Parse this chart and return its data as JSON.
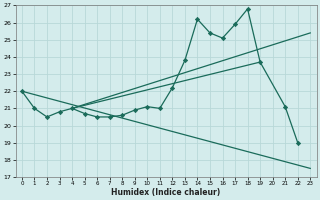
{
  "xlabel": "Humidex (Indice chaleur)",
  "xlim": [
    -0.5,
    23.5
  ],
  "ylim": [
    17,
    27
  ],
  "yticks": [
    17,
    18,
    19,
    20,
    21,
    22,
    23,
    24,
    25,
    26,
    27
  ],
  "xticks": [
    0,
    1,
    2,
    3,
    4,
    5,
    6,
    7,
    8,
    9,
    10,
    11,
    12,
    13,
    14,
    15,
    16,
    17,
    18,
    19,
    20,
    21,
    22,
    23
  ],
  "bg_color": "#d4ecec",
  "grid_color": "#b8d8d8",
  "line_color": "#1a6b5a",
  "series_main": {
    "x": [
      0,
      1,
      2,
      3,
      4,
      5,
      6,
      7,
      8,
      9,
      10,
      11,
      12,
      13,
      14,
      15,
      16,
      17,
      18,
      19,
      21,
      22
    ],
    "y": [
      22,
      21,
      20.5,
      20.8,
      21.0,
      20.7,
      20.5,
      20.5,
      20.6,
      20.9,
      21.1,
      21.0,
      22.2,
      23.8,
      26.2,
      25.4,
      25.1,
      25.9,
      26.8,
      23.7,
      21.1,
      19.0
    ]
  },
  "line_decreasing": {
    "x": [
      0,
      23
    ],
    "y": [
      22.0,
      17.5
    ]
  },
  "line_rising1": {
    "x": [
      4,
      23
    ],
    "y": [
      21.0,
      25.4
    ]
  },
  "line_rising2": {
    "x": [
      4,
      19
    ],
    "y": [
      21.0,
      23.7
    ]
  }
}
